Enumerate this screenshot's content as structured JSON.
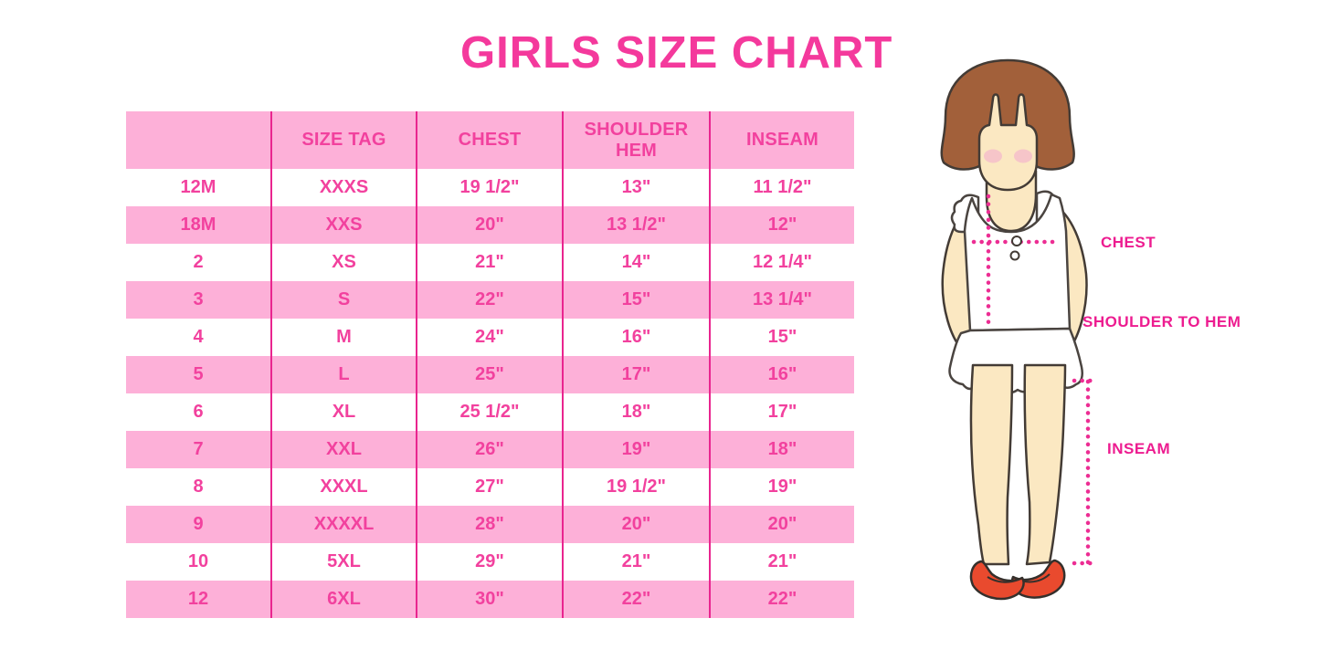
{
  "chart_data": {
    "type": "table",
    "title": "GIRLS SIZE CHART",
    "headers": [
      "",
      "SIZE TAG",
      "CHEST",
      "SHOULDER HEM",
      "INSEAM"
    ],
    "rows": [
      [
        "12M",
        "XXXS",
        "19 1/2\"",
        "13\"",
        "11 1/2\""
      ],
      [
        "18M",
        "XXS",
        "20\"",
        "13 1/2\"",
        "12\""
      ],
      [
        "2",
        "XS",
        "21\"",
        "14\"",
        "12 1/4\""
      ],
      [
        "3",
        "S",
        "22\"",
        "15\"",
        "13 1/4\""
      ],
      [
        "4",
        "M",
        "24\"",
        "16\"",
        "15\""
      ],
      [
        "5",
        "L",
        "25\"",
        "17\"",
        "16\""
      ],
      [
        "6",
        "XL",
        "25 1/2\"",
        "18\"",
        "17\""
      ],
      [
        "7",
        "XXL",
        "26\"",
        "19\"",
        "18\""
      ],
      [
        "8",
        "XXXL",
        "27\"",
        "19 1/2\"",
        "19\""
      ],
      [
        "9",
        "XXXXL",
        "28\"",
        "20\"",
        "20\""
      ],
      [
        "10",
        "5XL",
        "29\"",
        "21\"",
        "21\""
      ],
      [
        "12",
        "6XL",
        "30\"",
        "22\"",
        "22\""
      ]
    ],
    "layout": {
      "row_striping": "alternating white and pink, header pink",
      "gridlines": "vertical only"
    }
  },
  "figure": {
    "description": "illustration of girl with measurement guides",
    "labels": {
      "chest": "CHEST",
      "shoulder_to_hem": "SHOULDER TO HEM",
      "inseam": "INSEAM"
    }
  },
  "colors": {
    "title_pink": "#F4399C",
    "band_pink": "#FDB0D8",
    "table_text_pink": "#F2419E",
    "grid_line_pink": "#E9258F",
    "label_pink": "#ED1C90",
    "dotted_line_pink": "#EC2D93",
    "hair_brown": "#A2603A",
    "skin": "#FBE8C2",
    "shoe_red": "#E94A2E"
  }
}
